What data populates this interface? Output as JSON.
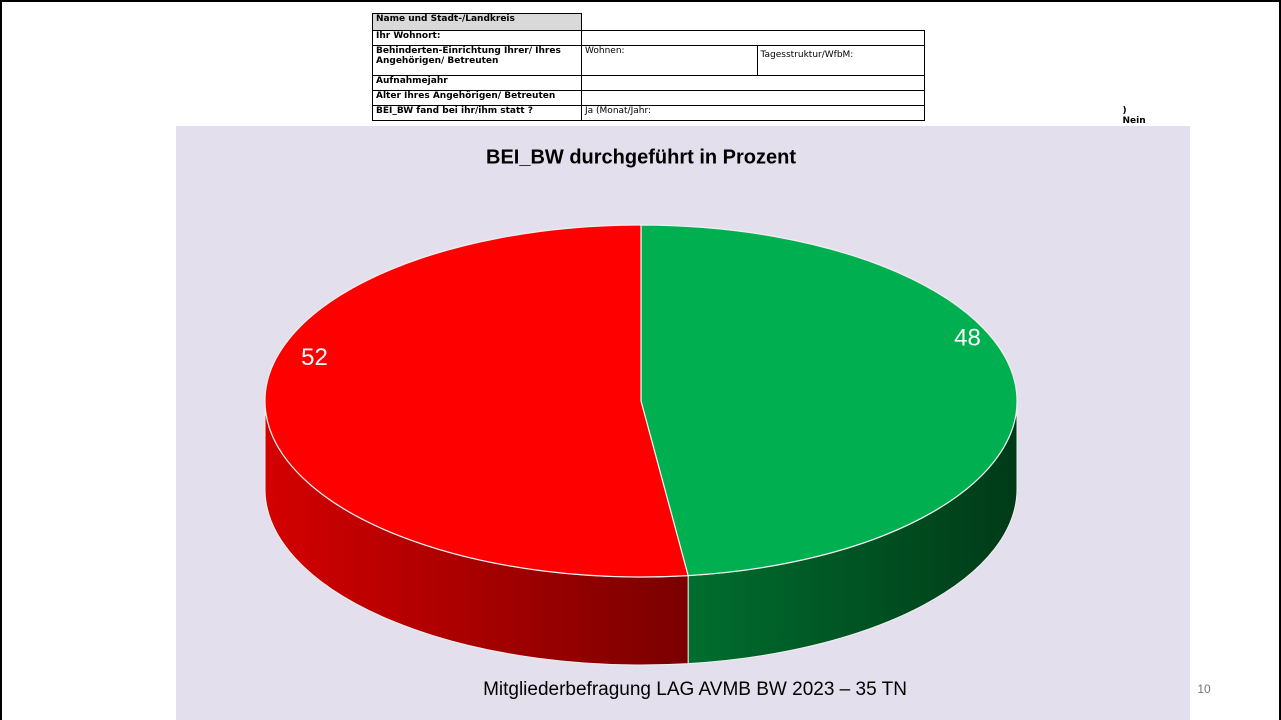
{
  "table": {
    "rows": [
      [
        "Name und Stadt-/Landkreis"
      ],
      [
        "Ihr Wohnort:"
      ],
      [
        "Behinderten-Einrichtung Ihrer/ Ihres Angehörigen/ Betreuten",
        "Wohnen:",
        "Tagesstruktur/WfbM:"
      ],
      [
        "Aufnahmejahr"
      ],
      [
        "Alter Ihres Angehörigen/ Betreuten"
      ],
      [
        "BEI_BW fand bei ihr/ihm statt ?",
        "Ja (Monat/Jahr:",
        ") Nein"
      ]
    ]
  },
  "chart_data": {
    "type": "pie",
    "title": "BEI_BW durchgeführt in Prozent",
    "values": [
      48,
      52
    ],
    "colors": [
      "#00b050",
      "#ff0000"
    ],
    "caption": "Mitgliederbefragung LAG AVMB BW 2023 – 35 TN"
  },
  "page_number": "10"
}
